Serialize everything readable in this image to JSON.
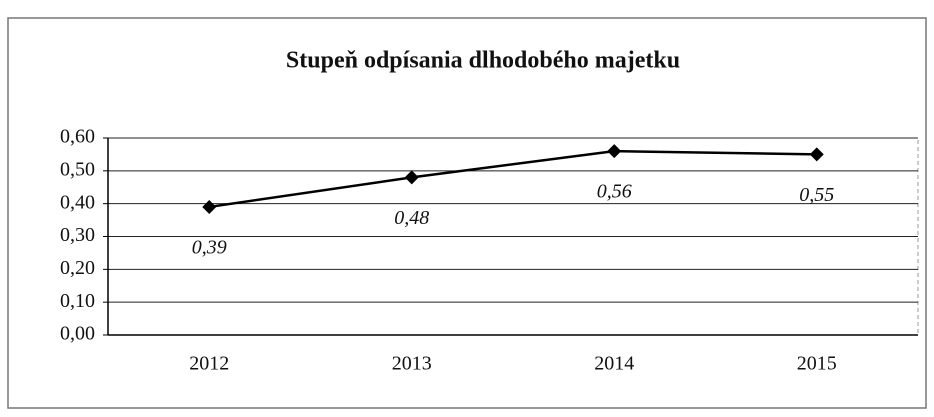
{
  "chart_data": {
    "type": "line",
    "title": "Stupeň odpísania dlhodobého majetku",
    "categories": [
      "2012",
      "2013",
      "2014",
      "2015"
    ],
    "series": [
      {
        "color": "#000000",
        "values": [
          0.39,
          0.48,
          0.56,
          0.55
        ],
        "value_labels": [
          "0,39",
          "0,48",
          "0,56",
          "0,55"
        ]
      }
    ],
    "ylim": [
      0,
      0.6
    ],
    "yticks": [
      {
        "value": 0,
        "label": "0,00"
      },
      {
        "value": 0.1,
        "label": "0,10"
      },
      {
        "value": 0.2,
        "label": "0,20"
      },
      {
        "value": 0.3,
        "label": "0,30"
      },
      {
        "value": 0.4,
        "label": "0,40"
      },
      {
        "value": 0.5,
        "label": "0,50"
      },
      {
        "value": 0.6,
        "label": "0,60"
      }
    ],
    "grid": true
  }
}
